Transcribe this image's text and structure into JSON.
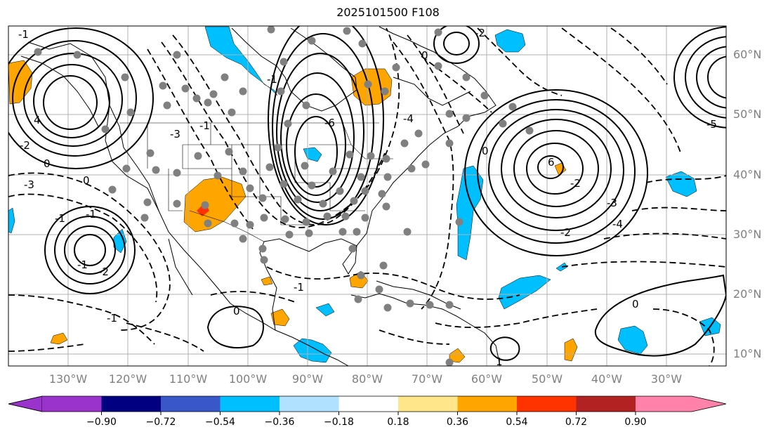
{
  "title": "2025101500 F108",
  "map": {
    "lon_labels": [
      "130°W",
      "120°W",
      "110°W",
      "100°W",
      "90°W",
      "80°W",
      "70°W",
      "60°W",
      "50°W",
      "40°W",
      "30°W"
    ],
    "lat_labels": [
      "60°N",
      "50°N",
      "40°N",
      "30°N",
      "20°N",
      "10°N"
    ],
    "label_color": "#808080"
  },
  "contour_labels": [
    "-1",
    "4",
    "0",
    "-2",
    "0",
    "-6",
    "-1",
    "-1",
    "0",
    "-3",
    "-1",
    "-2",
    "-1",
    "6",
    "-4",
    "-1",
    "-2",
    "-3",
    "-2",
    "-3",
    "-4",
    "-1",
    "-2",
    "0",
    "-1",
    "-5",
    "0",
    "1",
    "0"
  ],
  "colorbar": {
    "ticks": [
      "−0.90",
      "−0.72",
      "−0.54",
      "−0.36",
      "−0.18",
      "0.18",
      "0.36",
      "0.54",
      "0.72",
      "0.90"
    ],
    "colors": [
      "#9933cc",
      "#000080",
      "#3a57c9",
      "#00bfff",
      "#b0e2ff",
      "#ffffff",
      "#ffe68a",
      "#ffa500",
      "#ff3300",
      "#b22222",
      "#ff82ab"
    ]
  }
}
